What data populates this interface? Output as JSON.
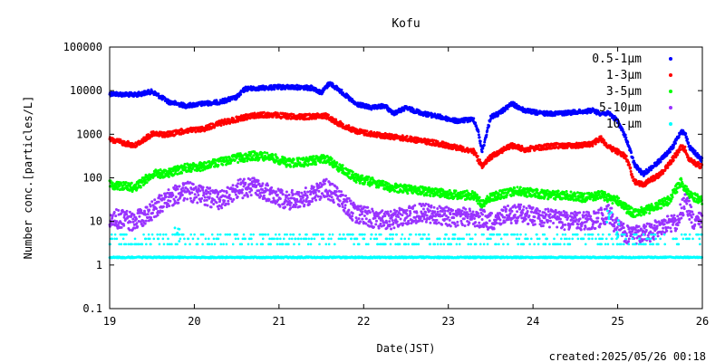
{
  "chart_data": {
    "type": "scatter",
    "title": "Kofu",
    "xlabel": "Date(JST)",
    "ylabel": "Number conc.[particles/L]",
    "x_ticks": [
      "19",
      "20",
      "21",
      "22",
      "23",
      "24",
      "25",
      "26"
    ],
    "xlim": [
      19,
      26
    ],
    "y_scale": "log",
    "y_ticks": [
      "0.1",
      "1",
      "10",
      "100",
      "1000",
      "10000",
      "100000"
    ],
    "ylim": [
      0.1,
      100000
    ],
    "grid": false,
    "legend_position": "top-right",
    "series": [
      {
        "name": "0.5-1μm",
        "color": "#0000ff",
        "points": [
          [
            19.0,
            8500
          ],
          [
            19.3,
            8000
          ],
          [
            19.5,
            9500
          ],
          [
            19.7,
            5500
          ],
          [
            19.9,
            4500
          ],
          [
            20.1,
            5000
          ],
          [
            20.3,
            5500
          ],
          [
            20.5,
            7000
          ],
          [
            20.6,
            11000
          ],
          [
            20.8,
            11500
          ],
          [
            21.0,
            12000
          ],
          [
            21.2,
            12000
          ],
          [
            21.4,
            11500
          ],
          [
            21.5,
            9000
          ],
          [
            21.6,
            15000
          ],
          [
            21.75,
            9000
          ],
          [
            21.9,
            5000
          ],
          [
            22.1,
            4000
          ],
          [
            22.25,
            4500
          ],
          [
            22.35,
            3000
          ],
          [
            22.5,
            4000
          ],
          [
            22.7,
            3000
          ],
          [
            22.9,
            2500
          ],
          [
            23.1,
            2000
          ],
          [
            23.3,
            2200
          ],
          [
            23.35,
            1200
          ],
          [
            23.4,
            400
          ],
          [
            23.5,
            2500
          ],
          [
            23.6,
            3000
          ],
          [
            23.75,
            5000
          ],
          [
            23.9,
            3500
          ],
          [
            24.1,
            3000
          ],
          [
            24.3,
            3000
          ],
          [
            24.5,
            3200
          ],
          [
            24.7,
            3500
          ],
          [
            24.8,
            3000
          ],
          [
            24.9,
            3000
          ],
          [
            25.0,
            2000
          ],
          [
            25.1,
            800
          ],
          [
            25.2,
            200
          ],
          [
            25.3,
            120
          ],
          [
            25.5,
            250
          ],
          [
            25.65,
            500
          ],
          [
            25.75,
            1200
          ],
          [
            25.8,
            1000
          ],
          [
            25.85,
            500
          ],
          [
            26.0,
            250
          ]
        ]
      },
      {
        "name": "1-3μm",
        "color": "#ff0000",
        "points": [
          [
            19.0,
            750
          ],
          [
            19.3,
            550
          ],
          [
            19.5,
            1000
          ],
          [
            19.7,
            1000
          ],
          [
            19.9,
            1200
          ],
          [
            20.1,
            1300
          ],
          [
            20.3,
            1800
          ],
          [
            20.5,
            2200
          ],
          [
            20.7,
            2700
          ],
          [
            20.9,
            2800
          ],
          [
            21.1,
            2600
          ],
          [
            21.3,
            2500
          ],
          [
            21.55,
            2700
          ],
          [
            21.7,
            1800
          ],
          [
            21.9,
            1200
          ],
          [
            22.1,
            1000
          ],
          [
            22.3,
            900
          ],
          [
            22.5,
            800
          ],
          [
            22.7,
            700
          ],
          [
            22.9,
            600
          ],
          [
            23.1,
            500
          ],
          [
            23.3,
            400
          ],
          [
            23.4,
            180
          ],
          [
            23.5,
            300
          ],
          [
            23.6,
            400
          ],
          [
            23.75,
            550
          ],
          [
            23.9,
            450
          ],
          [
            24.1,
            500
          ],
          [
            24.3,
            550
          ],
          [
            24.5,
            550
          ],
          [
            24.7,
            600
          ],
          [
            24.8,
            800
          ],
          [
            24.9,
            500
          ],
          [
            25.0,
            400
          ],
          [
            25.1,
            300
          ],
          [
            25.2,
            80
          ],
          [
            25.3,
            70
          ],
          [
            25.5,
            120
          ],
          [
            25.6,
            200
          ],
          [
            25.75,
            500
          ],
          [
            25.8,
            450
          ],
          [
            25.85,
            250
          ],
          [
            26.0,
            180
          ]
        ]
      },
      {
        "name": "3-5μm",
        "color": "#00ff00",
        "points": [
          [
            19.0,
            70
          ],
          [
            19.3,
            60
          ],
          [
            19.5,
            120
          ],
          [
            19.7,
            130
          ],
          [
            19.9,
            170
          ],
          [
            20.1,
            180
          ],
          [
            20.3,
            230
          ],
          [
            20.5,
            280
          ],
          [
            20.7,
            320
          ],
          [
            20.9,
            300
          ],
          [
            21.1,
            220
          ],
          [
            21.3,
            230
          ],
          [
            21.55,
            280
          ],
          [
            21.7,
            180
          ],
          [
            21.9,
            100
          ],
          [
            22.1,
            80
          ],
          [
            22.3,
            60
          ],
          [
            22.5,
            55
          ],
          [
            22.7,
            50
          ],
          [
            22.9,
            45
          ],
          [
            23.1,
            40
          ],
          [
            23.3,
            40
          ],
          [
            23.4,
            25
          ],
          [
            23.5,
            35
          ],
          [
            23.6,
            40
          ],
          [
            23.8,
            50
          ],
          [
            24.0,
            45
          ],
          [
            24.2,
            40
          ],
          [
            24.4,
            40
          ],
          [
            24.6,
            35
          ],
          [
            24.8,
            40
          ],
          [
            25.0,
            30
          ],
          [
            25.1,
            20
          ],
          [
            25.2,
            15
          ],
          [
            25.4,
            20
          ],
          [
            25.6,
            30
          ],
          [
            25.75,
            80
          ],
          [
            25.85,
            40
          ],
          [
            26.0,
            30
          ]
        ]
      },
      {
        "name": "5-10μm",
        "color": "#9933ff",
        "points": [
          [
            19.0,
            12
          ],
          [
            19.3,
            10
          ],
          [
            19.5,
            18
          ],
          [
            19.7,
            35
          ],
          [
            19.9,
            50
          ],
          [
            20.1,
            40
          ],
          [
            20.3,
            30
          ],
          [
            20.5,
            55
          ],
          [
            20.7,
            60
          ],
          [
            20.9,
            45
          ],
          [
            21.1,
            30
          ],
          [
            21.3,
            35
          ],
          [
            21.55,
            60
          ],
          [
            21.7,
            35
          ],
          [
            21.9,
            15
          ],
          [
            22.1,
            12
          ],
          [
            22.3,
            10
          ],
          [
            22.5,
            14
          ],
          [
            22.7,
            16
          ],
          [
            22.9,
            14
          ],
          [
            23.1,
            12
          ],
          [
            23.3,
            13
          ],
          [
            23.5,
            10
          ],
          [
            23.7,
            15
          ],
          [
            23.9,
            15
          ],
          [
            24.1,
            12
          ],
          [
            24.3,
            11
          ],
          [
            24.5,
            10
          ],
          [
            24.7,
            10
          ],
          [
            24.9,
            15
          ],
          [
            25.0,
            7
          ],
          [
            25.1,
            5
          ],
          [
            25.3,
            5
          ],
          [
            25.5,
            7
          ],
          [
            25.7,
            10
          ],
          [
            25.8,
            30
          ],
          [
            25.9,
            10
          ],
          [
            26.0,
            10
          ]
        ]
      },
      {
        "name": "10-μm",
        "color": "#00ffff",
        "points": [
          [
            19.0,
            1.5
          ],
          [
            19.5,
            1.5
          ],
          [
            20.0,
            1.5
          ],
          [
            20.5,
            1.5
          ],
          [
            21.0,
            1.5
          ],
          [
            21.5,
            1.5
          ],
          [
            22.0,
            1.5
          ],
          [
            22.5,
            1.5
          ],
          [
            23.0,
            1.5
          ],
          [
            23.5,
            1.5
          ],
          [
            24.0,
            1.5
          ],
          [
            24.5,
            1.5
          ],
          [
            25.0,
            1.5
          ],
          [
            25.5,
            1.5
          ],
          [
            26.0,
            1.5
          ],
          [
            19.6,
            4
          ],
          [
            19.8,
            7
          ],
          [
            20.2,
            4
          ],
          [
            20.6,
            4
          ],
          [
            21.0,
            4
          ],
          [
            21.4,
            4
          ],
          [
            21.8,
            4
          ],
          [
            22.1,
            4
          ],
          [
            22.3,
            4
          ],
          [
            22.6,
            3
          ],
          [
            23.0,
            3
          ],
          [
            23.4,
            3
          ],
          [
            23.8,
            3
          ],
          [
            24.2,
            3
          ],
          [
            24.6,
            3
          ],
          [
            24.9,
            15
          ],
          [
            25.0,
            10
          ],
          [
            25.3,
            3
          ],
          [
            25.6,
            4
          ],
          [
            25.8,
            5
          ],
          [
            26.0,
            4
          ]
        ]
      }
    ]
  },
  "footer": {
    "created": "created:2025/05/26 00:18"
  }
}
